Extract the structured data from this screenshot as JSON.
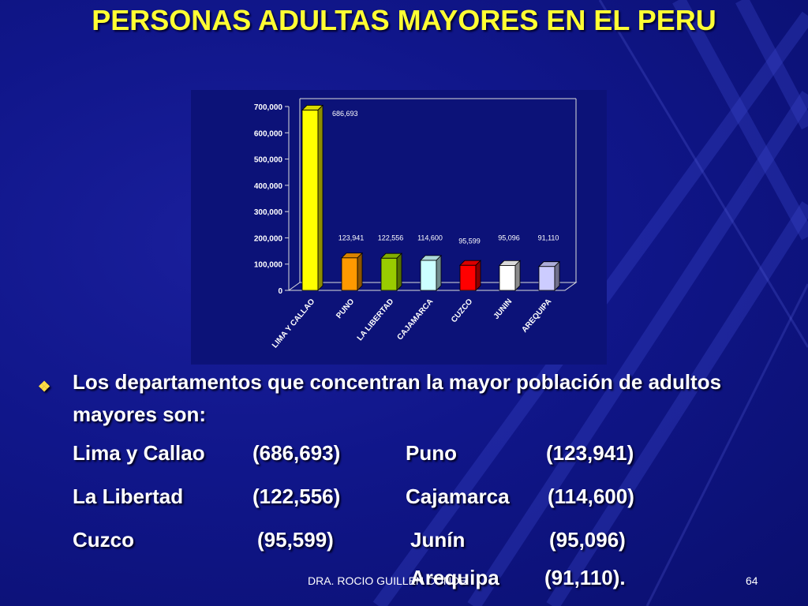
{
  "title": "PERSONAS ADULTAS MAYORES EN EL PERU",
  "chart_data": {
    "type": "bar",
    "categories": [
      "LIMA Y CALLAO",
      "PUNO",
      "LA LIBERTAD",
      "CAJAMARCA",
      "CUZCO",
      "JUNIN",
      "AREQUIPA"
    ],
    "values": [
      686693,
      123941,
      122556,
      114600,
      95599,
      95096,
      91110
    ],
    "data_labels": [
      "686,693",
      "123,941",
      "122,556",
      "114,600",
      "95,599",
      "95,096",
      "91,110"
    ],
    "colors": [
      "#ffff00",
      "#ff9900",
      "#99cc00",
      "#ccffff",
      "#ff0000",
      "#ffffff",
      "#ccccff"
    ],
    "yticks": [
      "0",
      "100,000",
      "200,000",
      "300,000",
      "400,000",
      "500,000",
      "600,000",
      "700,000"
    ],
    "ylim": [
      0,
      700000
    ],
    "title": "",
    "xlabel": "",
    "ylabel": ""
  },
  "bullet": {
    "icon": "diamond-bullet-icon",
    "intro": "Los departamentos que concentran la mayor población de adultos mayores son:",
    "rows": [
      {
        "name1": "Lima y Callao",
        "val1": "(686,693)",
        "name2": "Puno",
        "val2": "(123,941)"
      },
      {
        "name1": "La Libertad",
        "val1": "(122,556)",
        "name2": "Cajamarca",
        "val2": "(114,600)"
      },
      {
        "name1": "Cuzco",
        "val1": "(95,599)",
        "name2": "Junín",
        "val2": "(95,096)"
      },
      {
        "name1": "",
        "val1": "",
        "name2": "Arequipa",
        "val2": "(91,110)."
      }
    ]
  },
  "footer": {
    "author": "DRA. ROCIO GUILLEN CONDE",
    "page": "64"
  }
}
